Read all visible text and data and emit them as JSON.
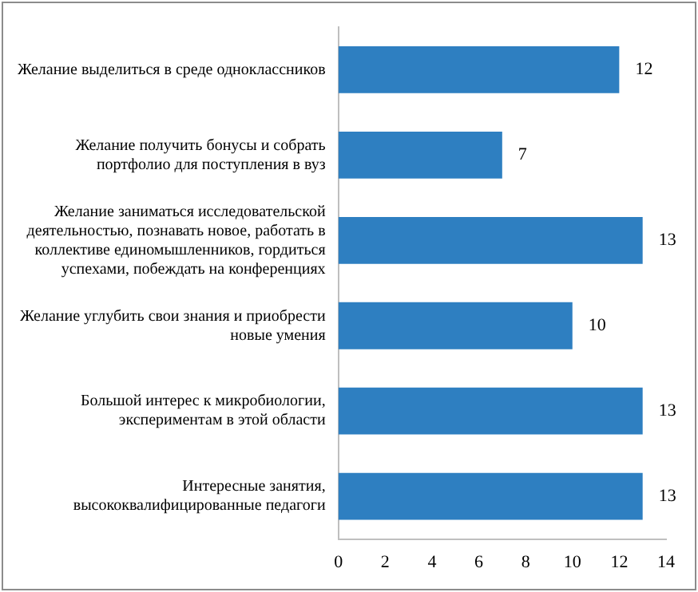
{
  "chart_data": {
    "type": "bar",
    "orientation": "horizontal",
    "categories": [
      "Желание выделиться в среде одноклассников",
      "Желание получить бонусы и собрать портфолио для поступления в вуз",
      "Желание заниматься исследовательской деятельностью, познавать новое, работать в коллективе единомышленников, гордиться успехами, побеждать на конференциях",
      "Желание углубить свои знания и приобрести новые умения",
      "Большой интерес к микробиологии, экспериментам в этой области",
      "Интересные занятия, высококвалифицированные педагоги"
    ],
    "values": [
      12,
      7,
      13,
      10,
      13,
      13
    ],
    "color": "#2e7fc1",
    "xlim": [
      0,
      14
    ],
    "xticks": [
      0,
      2,
      4,
      6,
      8,
      10,
      12,
      14
    ],
    "data_labels": true,
    "grid": false,
    "legend": false
  }
}
